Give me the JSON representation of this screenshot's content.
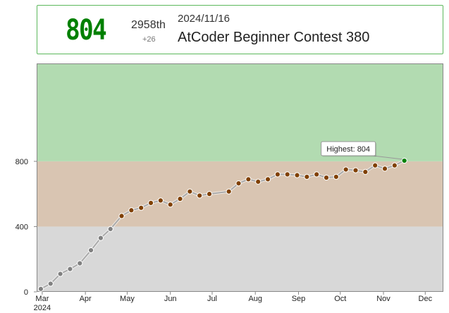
{
  "header": {
    "rating": "804",
    "rank": "2958th",
    "rank_delta": "+26",
    "date": "2024/11/16",
    "contest": "AtCoder Beginner Contest 380"
  },
  "chart_data": {
    "type": "line",
    "ylim": [
      0,
      1400
    ],
    "y_ticks": [
      0,
      400,
      800
    ],
    "y_tick_labels": [
      "0",
      "400",
      "800"
    ],
    "x_range": [
      "2024-02-26",
      "2024-12-14"
    ],
    "x_ticks": [
      {
        "date": "2024-03-01",
        "label": "Mar",
        "sublabel": "2024"
      },
      {
        "date": "2024-04-01",
        "label": "Apr",
        "sublabel": ""
      },
      {
        "date": "2024-05-01",
        "label": "May",
        "sublabel": ""
      },
      {
        "date": "2024-06-01",
        "label": "Jun",
        "sublabel": ""
      },
      {
        "date": "2024-07-01",
        "label": "Jul",
        "sublabel": ""
      },
      {
        "date": "2024-08-01",
        "label": "Aug",
        "sublabel": ""
      },
      {
        "date": "2024-09-01",
        "label": "Sep",
        "sublabel": ""
      },
      {
        "date": "2024-10-01",
        "label": "Oct",
        "sublabel": ""
      },
      {
        "date": "2024-11-01",
        "label": "Nov",
        "sublabel": ""
      },
      {
        "date": "2024-12-01",
        "label": "Dec",
        "sublabel": ""
      }
    ],
    "bands": [
      {
        "from": 0,
        "to": 400,
        "color": "#d8d8d8"
      },
      {
        "from": 400,
        "to": 800,
        "color": "#d9c5b2"
      },
      {
        "from": 800,
        "to": 1400,
        "color": "#b2dbb1"
      }
    ],
    "line_color": "#aaaaaa",
    "series": [
      {
        "points": [
          [
            "2024-02-29",
            18
          ],
          [
            "2024-03-07",
            50
          ],
          [
            "2024-03-14",
            110
          ],
          [
            "2024-03-21",
            140
          ],
          [
            "2024-03-28",
            175
          ],
          [
            "2024-04-05",
            255
          ],
          [
            "2024-04-12",
            330
          ],
          [
            "2024-04-19",
            385
          ],
          [
            "2024-04-27",
            465
          ],
          [
            "2024-05-04",
            500
          ],
          [
            "2024-05-11",
            515
          ],
          [
            "2024-05-18",
            545
          ],
          [
            "2024-05-25",
            560
          ],
          [
            "2024-06-01",
            535
          ],
          [
            "2024-06-08",
            570
          ],
          [
            "2024-06-15",
            615
          ],
          [
            "2024-06-22",
            590
          ],
          [
            "2024-06-29",
            600
          ],
          [
            "2024-07-13",
            615
          ],
          [
            "2024-07-20",
            665
          ],
          [
            "2024-07-27",
            690
          ],
          [
            "2024-08-03",
            675
          ],
          [
            "2024-08-10",
            690
          ],
          [
            "2024-08-17",
            720
          ],
          [
            "2024-08-24",
            720
          ],
          [
            "2024-08-31",
            715
          ],
          [
            "2024-09-07",
            705
          ],
          [
            "2024-09-14",
            720
          ],
          [
            "2024-09-21",
            700
          ],
          [
            "2024-09-28",
            705
          ],
          [
            "2024-10-05",
            750
          ],
          [
            "2024-10-12",
            745
          ],
          [
            "2024-10-19",
            735
          ],
          [
            "2024-10-26",
            775
          ],
          [
            "2024-11-02",
            755
          ],
          [
            "2024-11-09",
            775
          ],
          [
            "2024-11-16",
            804
          ]
        ]
      }
    ],
    "point_color_by_band": [
      "#808080",
      "#804000",
      "#008000"
    ],
    "annotation": {
      "text": "Highest: 804",
      "date": "2024-11-16",
      "value": 804
    }
  }
}
